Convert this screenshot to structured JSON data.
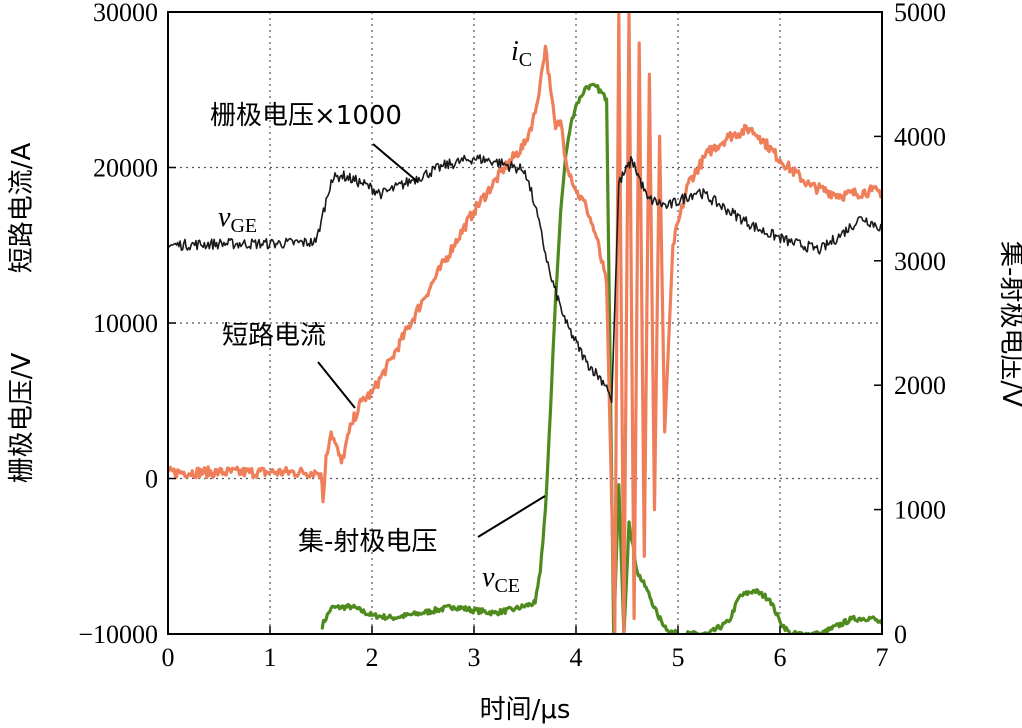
{
  "chart_data": {
    "type": "line",
    "xlabel": "时间/μs",
    "ylabel_left_parts": [
      "栅极电压/V",
      "短路电流/A"
    ],
    "ylabel_right": "集-射极电压/V",
    "xlim": [
      0,
      7
    ],
    "ylim_left": [
      -10000,
      30000
    ],
    "ylim_right": [
      0,
      5000
    ],
    "x_ticks": [
      0,
      1,
      2,
      3,
      4,
      5,
      6,
      7
    ],
    "x_tick_labels": [
      "0",
      "1",
      "2",
      "3",
      "4",
      "5",
      "6",
      "7"
    ],
    "y_left_ticks": [
      -10000,
      0,
      10000,
      20000,
      30000
    ],
    "y_left_tick_labels": [
      "−10000",
      "0",
      "10000",
      "20000",
      "30000"
    ],
    "y_right_ticks": [
      0,
      1000,
      2000,
      3000,
      4000,
      5000
    ],
    "y_right_tick_labels": [
      "0",
      "1000",
      "2000",
      "3000",
      "4000",
      "5000"
    ],
    "grid": true,
    "colors": {
      "gate": "#1a1a1a",
      "current": "#ef7f5a",
      "vce": "#4e8a1e",
      "grid": "#555555"
    },
    "series": [
      {
        "key": "gate",
        "axis": "left",
        "x": [
          0,
          0.5,
          1.0,
          1.45,
          1.5,
          1.6,
          1.7,
          1.9,
          2.1,
          2.4,
          2.7,
          3.0,
          3.2,
          3.5,
          3.6,
          3.75,
          3.9,
          4.1,
          4.3,
          4.35,
          4.42,
          4.55,
          4.7,
          4.9,
          5.2,
          5.5,
          5.8,
          6.1,
          6.4,
          6.6,
          6.8,
          7.0
        ],
        "values": [
          15000,
          15100,
          15100,
          15200,
          16500,
          19200,
          19500,
          19000,
          18300,
          19200,
          20100,
          20600,
          20400,
          19800,
          17500,
          13000,
          10000,
          7500,
          6000,
          4900,
          19000,
          20500,
          18000,
          17500,
          18500,
          17200,
          16000,
          15200,
          14700,
          15700,
          16800,
          16100
        ]
      },
      {
        "key": "current",
        "axis": "left",
        "x": [
          0,
          0.5,
          1.0,
          1.45,
          1.5,
          1.52,
          1.55,
          1.6,
          1.7,
          1.8,
          1.9,
          2.0,
          2.2,
          2.5,
          2.8,
          3.0,
          3.3,
          3.5,
          3.6,
          3.65,
          3.7,
          3.75,
          3.8,
          3.85,
          3.9,
          4.0,
          4.1,
          4.2,
          4.3,
          4.38,
          4.42,
          4.47,
          4.52,
          4.57,
          4.62,
          4.67,
          4.72,
          4.77,
          4.82,
          4.87,
          4.95,
          5.1,
          5.3,
          5.5,
          5.7,
          5.8,
          6.0,
          6.3,
          6.6,
          6.9,
          7.0
        ],
        "values": [
          400,
          400,
          400,
          400,
          300,
          -1500,
          1500,
          3000,
          1000,
          3500,
          5000,
          5500,
          7800,
          11500,
          15000,
          17200,
          20000,
          21500,
          23500,
          25500,
          27800,
          25000,
          22500,
          23000,
          20500,
          18500,
          17500,
          15500,
          12500,
          -10000,
          30000,
          -10000,
          30000,
          -9000,
          28000,
          -5000,
          26000,
          -2000,
          22000,
          3000,
          15000,
          19000,
          21000,
          22000,
          22500,
          22000,
          20500,
          18800,
          18200,
          18500,
          18400
        ]
      },
      {
        "key": "vce",
        "axis": "right",
        "x": [
          1.5,
          1.6,
          1.8,
          2.0,
          2.2,
          2.5,
          2.8,
          3.0,
          3.2,
          3.4,
          3.6,
          3.65,
          3.7,
          3.75,
          3.8,
          3.85,
          3.9,
          3.95,
          4.0,
          4.05,
          4.1,
          4.2,
          4.3,
          4.37,
          4.42,
          4.47,
          4.52,
          4.6,
          4.7,
          4.8,
          4.9,
          5.0,
          5.3,
          5.5,
          5.6,
          5.75,
          5.9,
          6.0,
          6.1,
          6.4,
          6.7,
          6.9,
          7.0
        ],
        "values": [
          50,
          210,
          220,
          150,
          130,
          170,
          220,
          190,
          170,
          200,
          250,
          500,
          1000,
          1800,
          2700,
          3400,
          3850,
          4100,
          4250,
          4320,
          4400,
          4400,
          4300,
          0,
          1200,
          0,
          900,
          500,
          350,
          150,
          30,
          0,
          0,
          100,
          300,
          350,
          280,
          100,
          0,
          0,
          120,
          130,
          80
        ]
      }
    ],
    "annotations": {
      "gate_label": "栅极电压×1000",
      "current_label": "短路电流",
      "vce_label": "集-射极电压",
      "vge_main": "v",
      "vge_sub": "GE",
      "ic_main": "i",
      "ic_sub": "C",
      "vce_main": "v",
      "vce_sub": "CE"
    }
  }
}
